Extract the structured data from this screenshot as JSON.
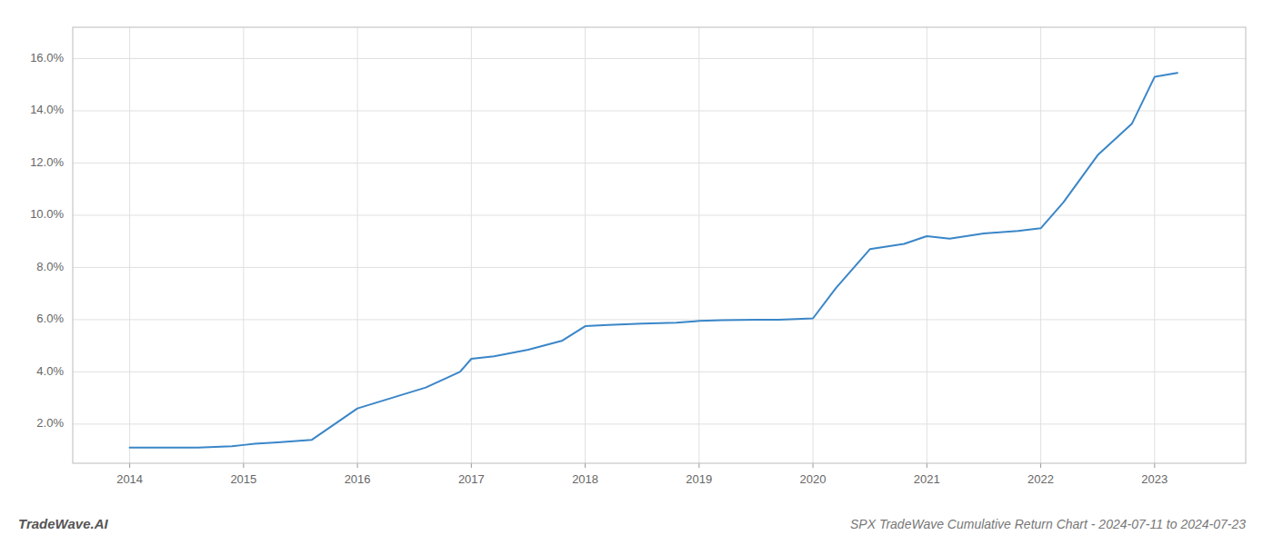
{
  "chart_data": {
    "type": "line",
    "title": "SPX TradeWave Cumulative Return Chart - 2024-07-11 to 2024-07-23",
    "annotations": [
      "TradeWave.AI"
    ],
    "color": "#3a86c8",
    "x": [
      2014.0,
      2014.3,
      2014.6,
      2014.9,
      2015.0,
      2015.1,
      2015.3,
      2015.6,
      2016.0,
      2016.3,
      2016.6,
      2016.9,
      2017.0,
      2017.2,
      2017.5,
      2017.8,
      2018.0,
      2018.2,
      2018.5,
      2018.8,
      2019.0,
      2019.2,
      2019.5,
      2019.7,
      2020.0,
      2020.2,
      2020.5,
      2020.8,
      2021.0,
      2021.2,
      2021.5,
      2021.8,
      2022.0,
      2022.2,
      2022.5,
      2022.8,
      2023.0,
      2023.2
    ],
    "values": [
      1.1,
      1.1,
      1.1,
      1.15,
      1.2,
      1.25,
      1.3,
      1.4,
      2.6,
      3.0,
      3.4,
      4.0,
      4.5,
      4.6,
      4.85,
      5.2,
      5.75,
      5.8,
      5.85,
      5.88,
      5.95,
      5.98,
      6.0,
      6.0,
      6.05,
      7.2,
      8.7,
      8.9,
      9.2,
      9.1,
      9.3,
      9.4,
      9.5,
      10.5,
      12.3,
      13.5,
      15.3,
      15.45
    ],
    "xlim": [
      2013.5,
      2023.8
    ],
    "ylim": [
      0.5,
      17.2
    ],
    "xticks": [
      2014,
      2015,
      2016,
      2017,
      2018,
      2019,
      2020,
      2021,
      2022,
      2023
    ],
    "yticks": [
      {
        "value": 2.0,
        "label": "2.0%"
      },
      {
        "value": 4.0,
        "label": "4.0%"
      },
      {
        "value": 6.0,
        "label": "6.0%"
      },
      {
        "value": 8.0,
        "label": "8.0%"
      },
      {
        "value": 10.0,
        "label": "10.0%"
      },
      {
        "value": 12.0,
        "label": "12.0%"
      },
      {
        "value": 14.0,
        "label": "14.0%"
      },
      {
        "value": 16.0,
        "label": "16.0%"
      }
    ],
    "grid": true
  }
}
